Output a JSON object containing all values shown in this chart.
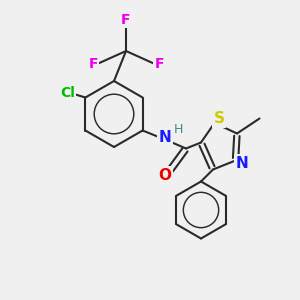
{
  "background_color": "#f0f0f0",
  "bond_color": "#2a2a2a",
  "atom_colors": {
    "F": "#ee00ee",
    "Cl": "#00bb00",
    "N": "#1a1aff",
    "O": "#ee0000",
    "S": "#cccc00",
    "H": "#3a8a8a",
    "C": "#2a2a2a"
  },
  "bond_width": 1.5,
  "font_size": 10
}
